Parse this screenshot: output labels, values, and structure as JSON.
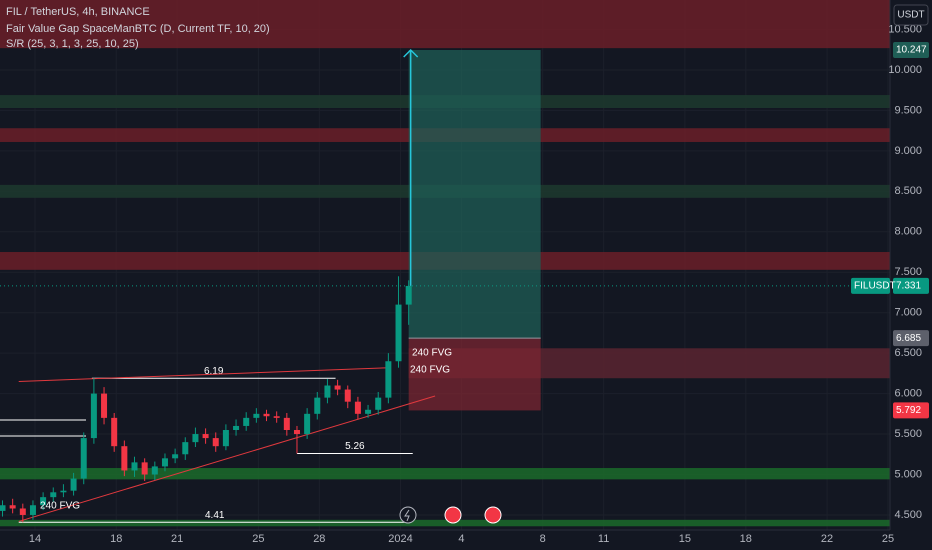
{
  "chart_data": {
    "type": "candlestick",
    "title": "FIL / TetherUS, 4h, BINANCE",
    "indicators": [
      "Fair Value Gap SpaceManBTC (D, Current TF, 10, 20)",
      "S/R (25, 3, 1, 3, 25, 10, 25)"
    ],
    "currency": "USDT",
    "symbol_label": "FILUSDT",
    "up_color": "#089981",
    "down_color": "#f23645",
    "grid": true,
    "xlim": [
      12.277,
      56.1
    ],
    "ylim": [
      4.314,
      10.865
    ],
    "xticks": [
      {
        "value": 14,
        "label": "14"
      },
      {
        "value": 18,
        "label": "18"
      },
      {
        "value": 21,
        "label": "21"
      },
      {
        "value": 25,
        "label": "25"
      },
      {
        "value": 28,
        "label": "28"
      },
      {
        "value": 32,
        "label": "2024"
      },
      {
        "value": 35,
        "label": "4"
      },
      {
        "value": 39,
        "label": "8"
      },
      {
        "value": 42,
        "label": "11"
      },
      {
        "value": 46,
        "label": "15"
      },
      {
        "value": 49,
        "label": "18"
      },
      {
        "value": 53,
        "label": "22"
      },
      {
        "value": 56,
        "label": "25"
      }
    ],
    "yticks": [
      {
        "value": 4.5,
        "label": "4.500"
      },
      {
        "value": 5,
        "label": "5.000"
      },
      {
        "value": 5.5,
        "label": "5.500"
      },
      {
        "value": 6,
        "label": "6.000"
      },
      {
        "value": 6.5,
        "label": "6.500"
      },
      {
        "value": 7,
        "label": "7.000"
      },
      {
        "value": 7.5,
        "label": "7.500"
      },
      {
        "value": 8,
        "label": "8.000"
      },
      {
        "value": 8.5,
        "label": "8.500"
      },
      {
        "value": 9,
        "label": "9.000"
      },
      {
        "value": 9.5,
        "label": "9.500"
      },
      {
        "value": 10,
        "label": "10.000"
      },
      {
        "value": 10.5,
        "label": "10.500"
      }
    ],
    "candles": {
      "x": [
        12.4,
        12.9,
        13.4,
        13.9,
        14.4,
        14.9,
        15.4,
        15.9,
        16.4,
        16.9,
        17.4,
        17.9,
        18.4,
        18.9,
        19.4,
        19.9,
        20.4,
        20.9,
        21.4,
        21.9,
        22.4,
        22.9,
        23.4,
        23.9,
        24.4,
        24.9,
        25.4,
        25.9,
        26.4,
        26.9,
        27.4,
        27.9,
        28.4,
        28.9,
        29.4,
        29.9,
        30.4,
        30.9,
        31.4,
        31.9,
        32.4
      ],
      "open": [
        4.55,
        4.62,
        4.58,
        4.5,
        4.62,
        4.72,
        4.78,
        4.8,
        4.95,
        5.45,
        6.0,
        5.7,
        5.35,
        5.05,
        5.15,
        5.0,
        5.1,
        5.2,
        5.25,
        5.4,
        5.5,
        5.45,
        5.35,
        5.55,
        5.6,
        5.7,
        5.75,
        5.72,
        5.7,
        5.55,
        5.5,
        5.75,
        5.95,
        6.1,
        6.05,
        5.9,
        5.75,
        5.8,
        5.95,
        6.4,
        7.1
      ],
      "high": [
        4.68,
        4.7,
        4.64,
        4.68,
        4.78,
        4.84,
        4.88,
        5.02,
        5.52,
        6.19,
        6.08,
        5.76,
        5.42,
        5.22,
        5.2,
        5.16,
        5.26,
        5.32,
        5.46,
        5.58,
        5.57,
        5.52,
        5.62,
        5.68,
        5.77,
        5.82,
        5.8,
        5.78,
        5.76,
        5.6,
        5.82,
        6.02,
        6.18,
        6.17,
        6.1,
        5.96,
        5.86,
        6.02,
        6.5,
        7.45,
        7.4
      ],
      "low": [
        4.48,
        4.52,
        4.41,
        4.44,
        4.56,
        4.66,
        4.72,
        4.74,
        4.88,
        5.38,
        5.62,
        5.28,
        4.98,
        4.97,
        4.92,
        4.93,
        5.04,
        5.14,
        5.18,
        5.34,
        5.38,
        5.28,
        5.3,
        5.48,
        5.54,
        5.64,
        5.66,
        5.64,
        5.48,
        5.26,
        5.44,
        5.68,
        5.88,
        5.98,
        5.82,
        5.68,
        5.7,
        5.74,
        5.88,
        6.32,
        6.85
      ],
      "close": [
        4.62,
        4.58,
        4.5,
        4.62,
        4.72,
        4.78,
        4.8,
        4.95,
        5.45,
        6.0,
        5.7,
        5.35,
        5.05,
        5.15,
        5.0,
        5.1,
        5.2,
        5.25,
        5.4,
        5.5,
        5.45,
        5.35,
        5.55,
        5.6,
        5.7,
        5.75,
        5.72,
        5.7,
        5.55,
        5.5,
        5.75,
        5.95,
        6.1,
        6.05,
        5.9,
        5.75,
        5.8,
        5.95,
        6.4,
        7.1,
        7.331
      ]
    },
    "zones": [
      {
        "range": [
          10.27,
          10.865
        ],
        "color": "#6b1e28"
      },
      {
        "range": [
          9.53,
          9.69
        ],
        "color": "#1d3a2e"
      },
      {
        "range": [
          9.11,
          9.28
        ],
        "color": "#6b1e28"
      },
      {
        "range": [
          8.42,
          8.58
        ],
        "color": "#1d3a2e"
      },
      {
        "range": [
          7.53,
          7.75
        ],
        "color": "#6b1e28"
      },
      {
        "range": [
          4.94,
          5.08
        ],
        "color": "#1b6b2a"
      },
      {
        "range": [
          4.36,
          4.44
        ],
        "color": "#1b6b2a"
      },
      {
        "range": [
          6.19,
          6.56
        ],
        "color": "#5a2530",
        "x": [
          32.4,
          56.1
        ]
      }
    ],
    "position": {
      "entry": 6.685,
      "target": 10.247,
      "stop": 5.792,
      "x": [
        32.4,
        38.9
      ]
    },
    "levels": [
      {
        "value": 6.19,
        "x": [
          16.8,
          28.8
        ]
      },
      {
        "value": 5.26,
        "x": [
          26.9,
          32.6
        ]
      },
      {
        "value": 4.41,
        "x": [
          13.2,
          32.5
        ]
      }
    ],
    "trendlines": [
      {
        "x": [
          13.2,
          31.5
        ],
        "y": [
          6.15,
          6.32
        ],
        "color": "#e0393e"
      },
      {
        "x": [
          13.2,
          33.7
        ],
        "y": [
          4.42,
          5.97
        ],
        "color": "#e0393e"
      }
    ],
    "fvg_labels": [
      "240 FVG",
      "240 FVG",
      "240 FVG"
    ]
  }
}
